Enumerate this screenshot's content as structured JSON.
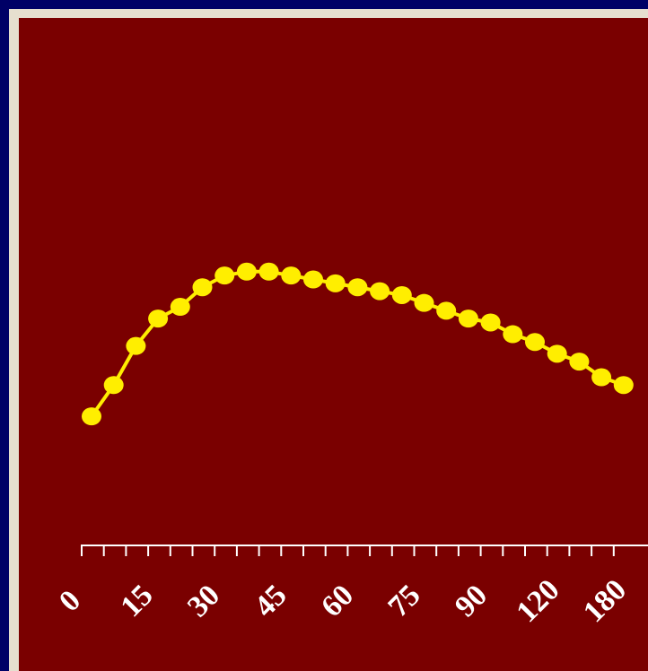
{
  "colors": {
    "outer_background": "#000066",
    "frame": "#e6dfcf",
    "plot_background": "#7a0000",
    "series": "#ffee00",
    "axis": "#ffffff",
    "tick_label": "#ffffff"
  },
  "chart_data": {
    "type": "line",
    "title": "",
    "xlabel": "",
    "ylabel": "",
    "grid": false,
    "legend": "none",
    "x_ticks": [
      "0",
      "15",
      "30",
      "45",
      "60",
      "75",
      "90",
      "120",
      "180"
    ],
    "minor_tick_count": 25,
    "marker": "circle",
    "series": [
      {
        "values": [
          3.3,
          4.1,
          5.1,
          5.8,
          6.1,
          6.6,
          6.9,
          7.0,
          7.0,
          6.9,
          6.8,
          6.7,
          6.6,
          6.5,
          6.4,
          6.2,
          6.0,
          5.8,
          5.7,
          5.4,
          5.2,
          4.9,
          4.7,
          4.3,
          4.1
        ],
        "ylim": [
          0,
          12.5
        ]
      }
    ]
  }
}
